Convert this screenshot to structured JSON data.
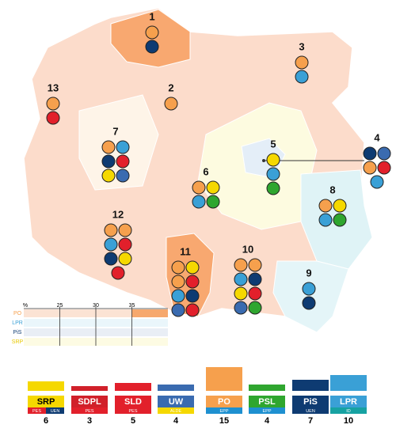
{
  "regions": [
    "1",
    "2",
    "3",
    "4",
    "5",
    "6",
    "7",
    "8",
    "9",
    "10",
    "11",
    "12",
    "13"
  ],
  "scale": {
    "unit": "%",
    "xlim": [
      20,
      40
    ],
    "ticks": [
      25,
      30,
      35
    ],
    "rows": [
      "PO",
      "LPR",
      "PiS",
      "SRP"
    ]
  },
  "parties": [
    {
      "name": "SRP",
      "groups": [
        "PES",
        "UEN"
      ],
      "seats": 6,
      "color": "#f5d800"
    },
    {
      "name": "SDPL",
      "groups": [
        "PES"
      ],
      "seats": 3,
      "color": "#d1202a"
    },
    {
      "name": "SLD",
      "groups": [
        "PES"
      ],
      "seats": 5,
      "color": "#e2202b"
    },
    {
      "name": "UW",
      "groups": [
        "ALDE"
      ],
      "seats": 4,
      "color": "#3a6bb0"
    },
    {
      "name": "PO",
      "groups": [
        "EPP"
      ],
      "seats": 15,
      "color": "#f6a04d"
    },
    {
      "name": "PSL",
      "groups": [
        "EPP"
      ],
      "seats": 4,
      "color": "#2fa62f"
    },
    {
      "name": "PiS",
      "groups": [
        "UEN"
      ],
      "seats": 7,
      "color": "#0e3b72"
    },
    {
      "name": "LPR",
      "groups": [
        "ID"
      ],
      "seats": 10,
      "color": "#3aa0d6"
    }
  ]
}
